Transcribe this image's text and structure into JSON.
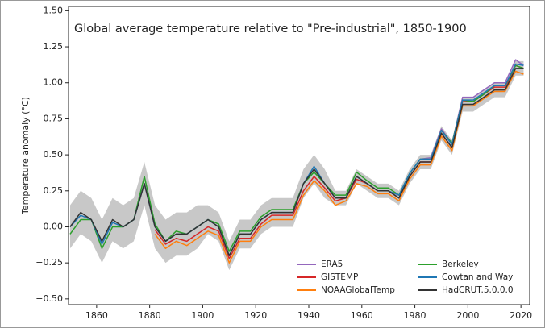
{
  "chart_data": {
    "type": "line",
    "title": "Global average temperature relative to \"Pre-industrial\", 1850-1900",
    "y_label": "Temperature anomaly (°C)",
    "x": [
      1850,
      1854,
      1858,
      1862,
      1866,
      1870,
      1874,
      1878,
      1882,
      1886,
      1890,
      1894,
      1898,
      1902,
      1906,
      1910,
      1914,
      1918,
      1922,
      1926,
      1930,
      1934,
      1938,
      1942,
      1946,
      1950,
      1954,
      1958,
      1962,
      1966,
      1970,
      1974,
      1978,
      1982,
      1986,
      1990,
      1994,
      1998,
      2002,
      2006,
      2010,
      2014,
      2018,
      2021
    ],
    "series": [
      {
        "name": "ERA5",
        "color": "#9467bd",
        "values": [
          null,
          null,
          null,
          null,
          null,
          null,
          null,
          null,
          null,
          null,
          null,
          null,
          null,
          null,
          null,
          null,
          null,
          null,
          null,
          null,
          null,
          null,
          null,
          null,
          null,
          null,
          null,
          null,
          null,
          null,
          null,
          null,
          null,
          0.47,
          0.48,
          0.68,
          0.58,
          0.9,
          0.9,
          0.95,
          1.0,
          1.0,
          1.16,
          1.12
        ]
      },
      {
        "name": "GISTEMP",
        "color": "#d62728",
        "values": [
          null,
          null,
          null,
          null,
          null,
          null,
          null,
          null,
          -0.02,
          -0.12,
          -0.08,
          -0.1,
          -0.05,
          0.0,
          -0.03,
          -0.22,
          -0.08,
          -0.08,
          0.02,
          0.08,
          0.08,
          0.08,
          0.25,
          0.35,
          0.27,
          0.18,
          0.2,
          0.33,
          0.3,
          0.25,
          0.25,
          0.2,
          0.35,
          0.45,
          0.45,
          0.65,
          0.55,
          0.87,
          0.87,
          0.92,
          0.97,
          0.97,
          1.12,
          1.1
        ]
      },
      {
        "name": "NOAAGlobalTemp",
        "color": "#ff7f0e",
        "values": [
          null,
          null,
          null,
          null,
          null,
          null,
          null,
          null,
          -0.05,
          -0.15,
          -0.1,
          -0.13,
          -0.08,
          -0.03,
          -0.06,
          -0.25,
          -0.1,
          -0.1,
          0.0,
          0.05,
          0.05,
          0.05,
          0.22,
          0.32,
          0.25,
          0.15,
          0.18,
          0.3,
          0.28,
          0.23,
          0.23,
          0.18,
          0.33,
          0.43,
          0.43,
          0.63,
          0.53,
          0.84,
          0.84,
          0.89,
          0.94,
          0.94,
          1.08,
          1.06
        ]
      },
      {
        "name": "Berkeley",
        "color": "#2ca02c",
        "values": [
          -0.05,
          0.05,
          0.05,
          -0.15,
          0.0,
          0.0,
          0.05,
          0.35,
          0.02,
          -0.1,
          -0.03,
          -0.05,
          0.0,
          0.05,
          0.02,
          -0.17,
          -0.03,
          -0.03,
          0.07,
          0.12,
          0.12,
          0.12,
          0.3,
          0.38,
          0.3,
          0.22,
          0.22,
          0.38,
          0.32,
          0.27,
          0.27,
          0.22,
          0.37,
          0.47,
          0.47,
          0.67,
          0.58,
          0.88,
          0.87,
          0.92,
          0.98,
          0.98,
          1.12,
          1.1
        ]
      },
      {
        "name": "Cowtan and Way",
        "color": "#1f77b4",
        "values": [
          0.0,
          0.08,
          0.05,
          -0.12,
          0.03,
          0.0,
          0.05,
          0.3,
          0.0,
          -0.1,
          -0.05,
          -0.05,
          0.0,
          0.05,
          0.0,
          -0.2,
          -0.05,
          -0.05,
          0.05,
          0.1,
          0.1,
          0.1,
          0.3,
          0.42,
          0.3,
          0.2,
          0.2,
          0.35,
          0.3,
          0.25,
          0.25,
          0.22,
          0.37,
          0.47,
          0.47,
          0.67,
          0.57,
          0.88,
          0.88,
          0.93,
          0.98,
          0.98,
          1.13,
          1.12
        ]
      },
      {
        "name": "HadCRUT.5.0.0.0",
        "color": "#333333",
        "values": [
          0.0,
          0.1,
          0.05,
          -0.1,
          0.05,
          0.0,
          0.05,
          0.3,
          0.0,
          -0.1,
          -0.05,
          -0.05,
          0.0,
          0.05,
          0.0,
          -0.2,
          -0.05,
          -0.05,
          0.05,
          0.1,
          0.1,
          0.1,
          0.3,
          0.4,
          0.3,
          0.2,
          0.2,
          0.35,
          0.3,
          0.25,
          0.25,
          0.2,
          0.35,
          0.45,
          0.45,
          0.65,
          0.55,
          0.85,
          0.85,
          0.9,
          0.95,
          0.95,
          1.1,
          1.1
        ]
      }
    ],
    "band": {
      "color": "#c8c8c8",
      "lower": [
        -0.15,
        -0.05,
        -0.1,
        -0.25,
        -0.1,
        -0.15,
        -0.1,
        0.15,
        -0.15,
        -0.25,
        -0.2,
        -0.2,
        -0.15,
        -0.05,
        -0.1,
        -0.3,
        -0.15,
        -0.15,
        -0.05,
        0.0,
        0.0,
        0.0,
        0.2,
        0.3,
        0.2,
        0.15,
        0.15,
        0.3,
        0.25,
        0.2,
        0.2,
        0.15,
        0.3,
        0.4,
        0.4,
        0.6,
        0.5,
        0.8,
        0.8,
        0.85,
        0.9,
        0.9,
        1.05,
        1.05
      ],
      "upper": [
        0.15,
        0.25,
        0.2,
        0.05,
        0.2,
        0.15,
        0.2,
        0.45,
        0.15,
        0.05,
        0.1,
        0.1,
        0.15,
        0.15,
        0.1,
        -0.1,
        0.05,
        0.05,
        0.15,
        0.2,
        0.2,
        0.2,
        0.4,
        0.5,
        0.4,
        0.25,
        0.25,
        0.4,
        0.35,
        0.3,
        0.3,
        0.25,
        0.4,
        0.5,
        0.5,
        0.7,
        0.6,
        0.9,
        0.9,
        0.95,
        1.0,
        1.0,
        1.15,
        1.15
      ]
    },
    "xlim": [
      1849.4,
      2023.3
    ],
    "ylim": [
      -0.54,
      1.53
    ],
    "xticks": [
      1860,
      1880,
      1900,
      1920,
      1940,
      1960,
      1980,
      2000,
      2020
    ],
    "yticks": [
      {
        "value": 1.5,
        "label": "1.50"
      },
      {
        "value": 1.25,
        "label": "1.25"
      },
      {
        "value": 1.0,
        "label": "1.00"
      },
      {
        "value": 0.75,
        "label": "0.75"
      },
      {
        "value": 0.5,
        "label": "0.50"
      },
      {
        "value": 0.25,
        "label": "0.25"
      },
      {
        "value": 0.0,
        "label": "0.00"
      },
      {
        "value": -0.25,
        "label": "−0.25"
      },
      {
        "value": -0.5,
        "label": "−0.50"
      }
    ],
    "legend": "lower right"
  }
}
